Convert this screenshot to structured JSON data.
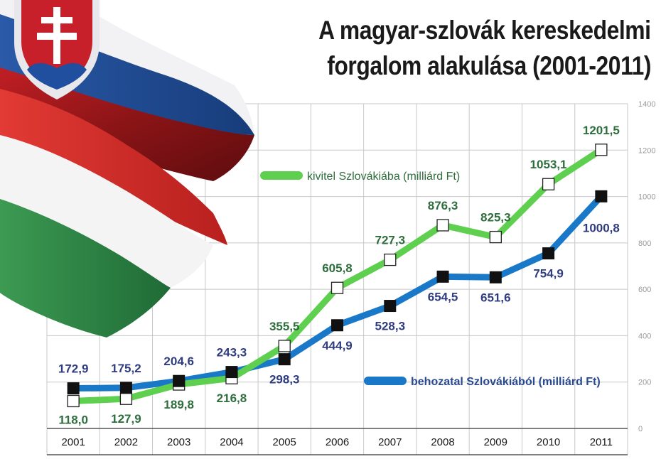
{
  "chart_data": {
    "type": "line",
    "title": [
      "A magyar-szlovák kereskedelmi",
      "forgalom alakulása (2001-2011)"
    ],
    "categories": [
      "2001",
      "2002",
      "2003",
      "2004",
      "2005",
      "2006",
      "2007",
      "2008",
      "2009",
      "2010",
      "2011"
    ],
    "series": [
      {
        "name": "kivitel Szlovákiába (milliárd Ft)",
        "color": "#5ecf4e",
        "label_color": "#2e6e3c",
        "marker": "open-square",
        "values": [
          118.0,
          127.9,
          189.8,
          216.8,
          355.5,
          605.8,
          727.3,
          876.3,
          825.3,
          1053.1,
          1201.5
        ],
        "labels": [
          "118,0",
          "127,9",
          "189,8",
          "216,8",
          "355,5",
          "605,8",
          "727,3",
          "876,3",
          "825,3",
          "1053,1",
          "1201,5"
        ]
      },
      {
        "name": "behozatal Szlovákiából (milliárd Ft)",
        "color": "#1a78c8",
        "label_color": "#303c80",
        "marker": "filled-square",
        "values": [
          172.9,
          175.2,
          204.6,
          243.3,
          298.3,
          444.9,
          528.3,
          654.5,
          651.6,
          754.9,
          1000.8
        ],
        "labels": [
          "172,9",
          "175,2",
          "204,6",
          "243,3",
          "298,3",
          "444,9",
          "528,3",
          "654,5",
          "651,6",
          "754,9",
          "1000,8"
        ]
      }
    ],
    "ylim": [
      0,
      1400
    ],
    "yticks": [
      0,
      200,
      400,
      600,
      800,
      1000,
      1200,
      1400
    ],
    "grid": true,
    "legend": "inline"
  }
}
